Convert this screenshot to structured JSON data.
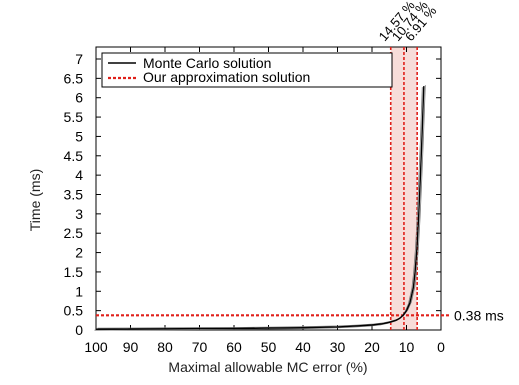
{
  "chart_data": {
    "type": "line",
    "title": "",
    "xlabel": "Maximal allowable MC error (%)",
    "ylabel": "Time (ms)",
    "xlim": [
      100,
      0
    ],
    "ylim": [
      0,
      7
    ],
    "x_reversed": true,
    "grid": false,
    "legend_position": "top-left",
    "x_ticks": [
      "100",
      "90",
      "80",
      "70",
      "60",
      "50",
      "40",
      "30",
      "20",
      "10",
      "0"
    ],
    "y_ticks": [
      "0",
      "0.5",
      "1",
      "1.5",
      "2",
      "2.5",
      "3",
      "3.5",
      "4",
      "4.5",
      "5",
      "5.5",
      "6",
      "6.5",
      "7"
    ],
    "series": [
      {
        "name": "Monte Carlo solution",
        "color": "#000000",
        "style": "solid",
        "x": [
          100,
          90,
          80,
          70,
          60,
          50,
          40,
          30,
          25,
          20,
          17,
          15,
          13,
          12,
          11,
          10,
          9,
          8,
          7.5,
          7,
          6.5,
          6,
          5.5,
          5
        ],
        "y": [
          0.02,
          0.025,
          0.03,
          0.035,
          0.04,
          0.05,
          0.06,
          0.08,
          0.1,
          0.13,
          0.16,
          0.2,
          0.25,
          0.3,
          0.38,
          0.5,
          0.7,
          1.1,
          1.5,
          2.1,
          2.9,
          3.9,
          5.0,
          6.3
        ]
      },
      {
        "name": "Our approximation solution",
        "color": "#e0201a",
        "style": "dashed",
        "y_constant": 0.38
      }
    ],
    "vertical_markers": [
      {
        "x": 14.57,
        "label": "14.57 %"
      },
      {
        "x": 10.74,
        "label": "10.74 %"
      },
      {
        "x": 6.91,
        "label": "6.91 %"
      }
    ],
    "annotations": [
      {
        "text": "0.38 ms",
        "y": 0.38
      }
    ]
  }
}
